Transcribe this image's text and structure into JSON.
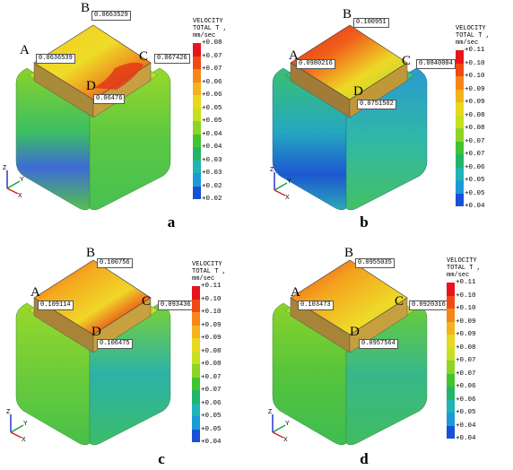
{
  "panels": [
    {
      "caption": "a",
      "legend_title_1": "VELOCITY",
      "legend_title_2": "TOTAL T , mm/sec",
      "ticks": [
        "+0.08",
        "+0.07",
        "+0.07",
        "+0.06",
        "+0.06",
        "+0.05",
        "+0.05",
        "+0.04",
        "+0.04",
        "+0.03",
        "+0.03",
        "+0.02",
        "+0.02"
      ],
      "points": [
        {
          "label": "A",
          "value": "0.0636539"
        },
        {
          "label": "B",
          "value": "0.0663529"
        },
        {
          "label": "C",
          "value": "0.067426"
        },
        {
          "label": "D",
          "value": "0.06476"
        }
      ]
    },
    {
      "caption": "b",
      "legend_title_1": "VELOCITY",
      "legend_title_2": "TOTAL T , mm/sec",
      "ticks": [
        "+0.11",
        "+0.10",
        "+0.10",
        "+0.09",
        "+0.09",
        "+0.08",
        "+0.08",
        "+0.07",
        "+0.07",
        "+0.06",
        "+0.05",
        "+0.05",
        "+0.04"
      ],
      "points": [
        {
          "label": "A",
          "value": "0.0980216"
        },
        {
          "label": "B",
          "value": "0.100951"
        },
        {
          "label": "C",
          "value": "0.0840004"
        },
        {
          "label": "D",
          "value": "0.0751502"
        }
      ]
    },
    {
      "caption": "c",
      "legend_title_1": "VELOCITY",
      "legend_title_2": "TOTAL T , mm/sec",
      "ticks": [
        "+0.11",
        "+0.10",
        "+0.10",
        "+0.09",
        "+0.09",
        "+0.08",
        "+0.08",
        "+0.07",
        "+0.07",
        "+0.06",
        "+0.05",
        "+0.05",
        "+0.04"
      ],
      "points": [
        {
          "label": "A",
          "value": "0.109114"
        },
        {
          "label": "B",
          "value": "0.100756"
        },
        {
          "label": "C",
          "value": "0.093436"
        },
        {
          "label": "D",
          "value": "0.106475"
        }
      ]
    },
    {
      "caption": "d",
      "legend_title_1": "VELOCITY",
      "legend_title_2": "TOTAL T , mm/sec",
      "ticks": [
        "+0.11",
        "+0.10",
        "+0.10",
        "+0.09",
        "+0.09",
        "+0.08",
        "+0.07",
        "+0.07",
        "+0.06",
        "+0.06",
        "+0.05",
        "+0.04",
        "+0.04"
      ],
      "points": [
        {
          "label": "A",
          "value": "0.103473"
        },
        {
          "label": "B",
          "value": "0.0955035"
        },
        {
          "label": "C",
          "value": "0.0920316"
        },
        {
          "label": "D",
          "value": "0.0957564"
        }
      ]
    }
  ],
  "legend_colors": [
    "#e8141c",
    "#f04a14",
    "#f7861a",
    "#f2b31c",
    "#e9d71e",
    "#c6e021",
    "#8cd425",
    "#41c42e",
    "#22b56a",
    "#20b4b4",
    "#1c9ad8",
    "#1850d8",
    "#1a20c8"
  ],
  "axis_labels": {
    "z": "Z",
    "y": "Y",
    "x": "X"
  },
  "colors": {
    "top_red": "#e0281c",
    "top_orange": "#f29a1c",
    "top_yellow": "#eedd26",
    "side_green": "#5cc83a",
    "side_blue": "#3a78d8",
    "cyan": "#28c0c8"
  }
}
